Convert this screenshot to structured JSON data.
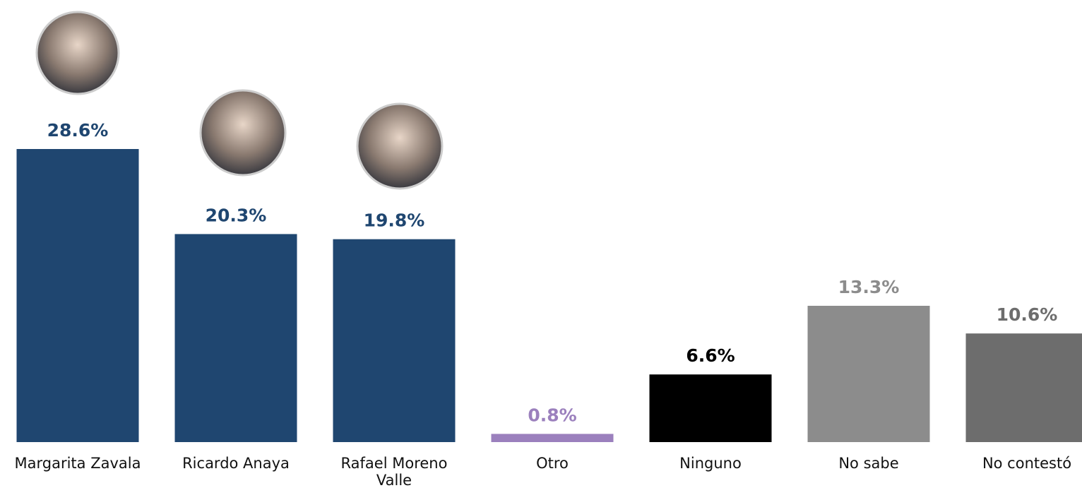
{
  "chart_data": {
    "type": "bar",
    "categories": [
      "Margarita Zavala",
      "Ricardo Anaya",
      "Rafael Moreno Valle",
      "Otro",
      "Ninguno",
      "No sabe",
      "No contestó"
    ],
    "values": [
      28.6,
      20.3,
      19.8,
      0.8,
      6.6,
      13.3,
      10.6
    ],
    "value_labels": [
      "28.6%",
      "20.3%",
      "19.8%",
      "0.8%",
      "6.6%",
      "13.3%",
      "10.6%"
    ],
    "colors": [
      "#1f4670",
      "#1f4670",
      "#1f4670",
      "#9b80bd",
      "#000000",
      "#8c8c8c",
      "#6d6d6d"
    ]
  }
}
